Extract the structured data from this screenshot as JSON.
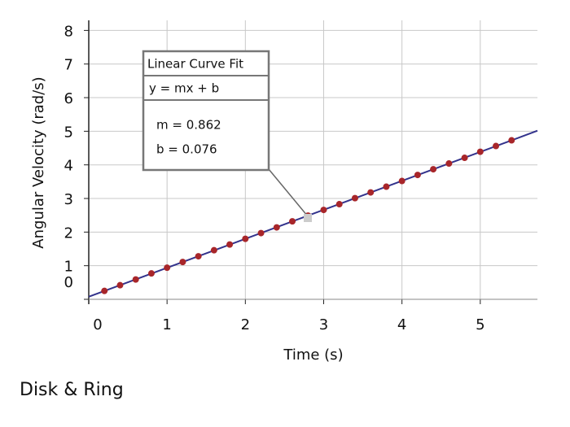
{
  "chart_data": {
    "type": "scatter",
    "caption": "Disk & Ring",
    "x_label": "Time (s)",
    "y_label": "Angular Velocity (rad/s)",
    "xlim": [
      0,
      5.73
    ],
    "ylim": [
      0,
      8.3
    ],
    "xticks": [
      0,
      1,
      2,
      3,
      4,
      5
    ],
    "yticks": [
      0,
      1,
      2,
      3,
      4,
      5,
      6,
      7,
      8
    ],
    "grid": true,
    "series": [
      {
        "color": "#a8262a",
        "x": [
          0.2,
          0.4,
          0.6,
          0.8,
          1.0,
          1.2,
          1.4,
          1.6,
          1.8,
          2.0,
          2.2,
          2.4,
          2.6,
          2.8,
          3.0,
          3.2,
          3.4,
          3.6,
          3.8,
          4.0,
          4.2,
          4.4,
          4.6,
          4.8,
          5.0,
          5.2,
          5.4
        ],
        "values": [
          0.25,
          0.42,
          0.59,
          0.77,
          0.94,
          1.11,
          1.28,
          1.46,
          1.63,
          1.8,
          1.97,
          2.14,
          2.32,
          2.49,
          2.66,
          2.83,
          3.01,
          3.18,
          3.35,
          3.52,
          3.7,
          3.87,
          4.04,
          4.21,
          4.39,
          4.56,
          4.73
        ]
      }
    ],
    "fit": {
      "title": "Linear Curve Fit",
      "equation": "y = mx + b",
      "color": "#33338c",
      "params": [
        {
          "value": 0.862,
          "label": "m = 0.862"
        },
        {
          "value": 0.076,
          "label": "b = 0.076"
        }
      ]
    }
  }
}
